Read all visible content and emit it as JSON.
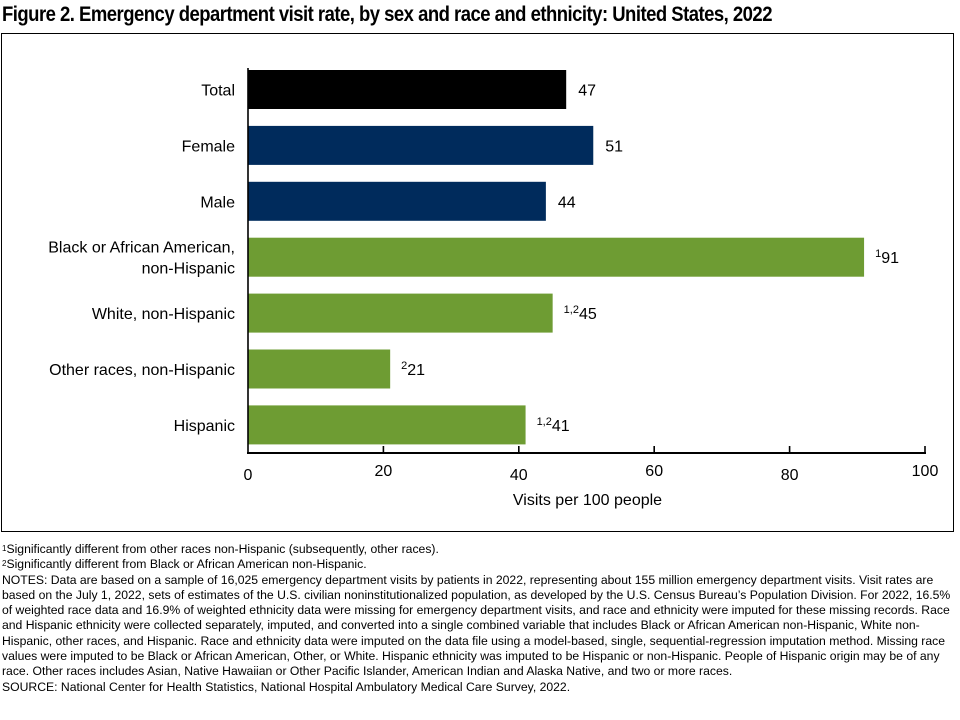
{
  "chart_data": {
    "type": "bar",
    "orientation": "horizontal",
    "title": "Figure 2. Emergency department visit rate, by sex and race and ethnicity: United States, 2022",
    "xlabel": "Visits per 100 people",
    "ylabel": "",
    "xlim": [
      0,
      100
    ],
    "xticks": [
      0,
      20,
      40,
      60,
      80,
      100
    ],
    "grid": false,
    "legend": "none",
    "categories": [
      [
        "Total"
      ],
      [
        "Female"
      ],
      [
        "Male"
      ],
      [
        "Black or African American,",
        "non-Hispanic"
      ],
      [
        "White, non-Hispanic"
      ],
      [
        "Other races, non-Hispanic"
      ],
      [
        "Hispanic"
      ]
    ],
    "values": [
      47,
      51,
      44,
      91,
      45,
      21,
      41
    ],
    "value_superscripts": [
      "",
      "",
      "",
      "1",
      "1,2",
      "2",
      "1,2"
    ],
    "groups": [
      "total",
      "sex",
      "sex",
      "race",
      "race",
      "race",
      "race"
    ],
    "colors": {
      "total": "#000000",
      "sex": "#002b5c",
      "race": "#6e9c33"
    }
  },
  "footnotes": [
    {
      "mark": "1",
      "text": "Significantly different from other races non-Hispanic (subsequently, other races)."
    },
    {
      "mark": "2",
      "text": "Significantly different from Black or African American non-Hispanic."
    }
  ],
  "notes": "NOTES: Data are based on a sample of 16,025 emergency department visits by patients in 2022, representing about 155 million emergency department visits. Visit rates are based on the July 1, 2022, sets of estimates of the U.S. civilian noninstitutionalized population, as developed by the U.S. Census Bureau’s Population Division. For 2022, 16.5% of weighted race data and 16.9% of weighted ethnicity data were missing for emergency department visits, and race and ethnicity were imputed for these missing records. Race and Hispanic ethnicity were collected separately, imputed, and converted into a single combined variable that includes Black or African American non-Hispanic, White non-Hispanic, other races, and Hispanic. Race and ethnicity data were imputed on the data file using a model-based, single, sequential-regression imputation method. Missing race values were imputed to be Black or African American, Other, or White. Hispanic ethnicity was imputed to be Hispanic or non-Hispanic. People of Hispanic origin may be of any race. Other races includes Asian, Native Hawaiian or Other Pacific Islander, American Indian and Alaska Native, and two or more races.",
  "source": "SOURCE: National Center for Health Statistics, National Hospital Ambulatory Medical Care Survey, 2022."
}
